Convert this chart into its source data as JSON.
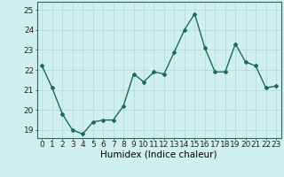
{
  "x": [
    0,
    1,
    2,
    3,
    4,
    5,
    6,
    7,
    8,
    9,
    10,
    11,
    12,
    13,
    14,
    15,
    16,
    17,
    18,
    19,
    20,
    21,
    22,
    23
  ],
  "y": [
    22.2,
    21.1,
    19.8,
    19.0,
    18.8,
    19.4,
    19.5,
    19.5,
    20.2,
    21.8,
    21.4,
    21.9,
    21.8,
    22.9,
    24.0,
    24.8,
    23.1,
    21.9,
    21.9,
    23.3,
    22.4,
    22.2,
    21.1,
    21.2
  ],
  "line_color": "#1a6b5a",
  "marker": "D",
  "marker_size": 2.0,
  "bg_color": "#cff0ee",
  "grid_color": "#aed8d4",
  "xlabel": "Humidex (Indice chaleur)",
  "xlim": [
    -0.5,
    23.5
  ],
  "ylim": [
    18.6,
    25.4
  ],
  "yticks": [
    19,
    20,
    21,
    22,
    23,
    24,
    25
  ],
  "xticks": [
    0,
    1,
    2,
    3,
    4,
    5,
    6,
    7,
    8,
    9,
    10,
    11,
    12,
    13,
    14,
    15,
    16,
    17,
    18,
    19,
    20,
    21,
    22,
    23
  ],
  "xlabel_fontsize": 7.5,
  "tick_fontsize": 6.5,
  "line_width": 1.0
}
